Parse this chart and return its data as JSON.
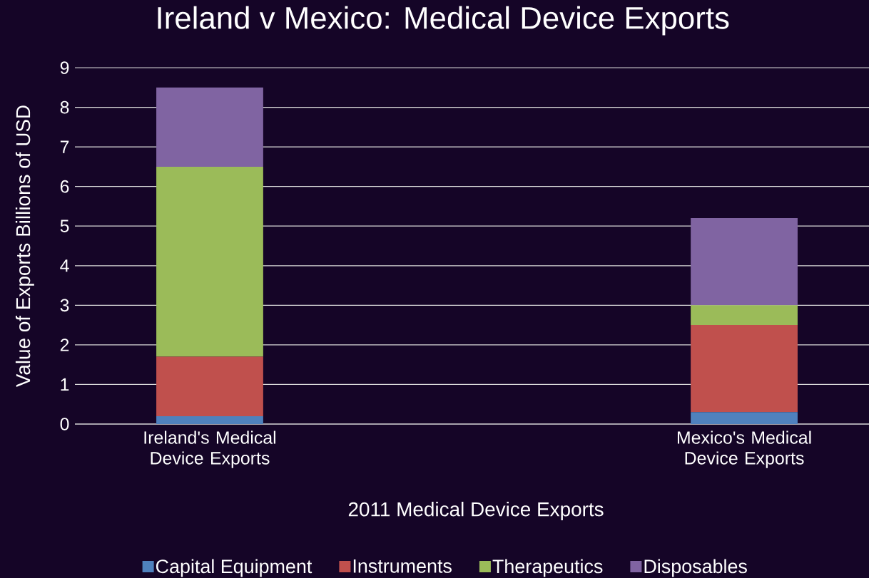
{
  "chart_data": {
    "type": "bar",
    "title": "Ireland v Mexico: Medical Device Exports",
    "xlabel": "2011 Medical Device Exports",
    "ylabel": "Value of Exports Billions of USD",
    "categories": [
      "Ireland's Medical Device Exports",
      "Mexico's Medical Device Exports"
    ],
    "series": [
      {
        "name": "Capital Equipment",
        "color": "#4f81bd",
        "values": [
          0.2,
          0.3
        ]
      },
      {
        "name": "Instruments",
        "color": "#c0504d",
        "values": [
          1.5,
          2.2
        ]
      },
      {
        "name": "Therapeutics",
        "color": "#9bbb59",
        "values": [
          4.8,
          0.5
        ]
      },
      {
        "name": "Disposables",
        "color": "#8064a2",
        "values": [
          2.0,
          2.2
        ]
      }
    ],
    "stacked": true,
    "ylim": [
      0,
      9
    ],
    "yticks": [
      0,
      1,
      2,
      3,
      4,
      5,
      6,
      7,
      8,
      9
    ],
    "grid": "y",
    "legend": "bottom"
  }
}
